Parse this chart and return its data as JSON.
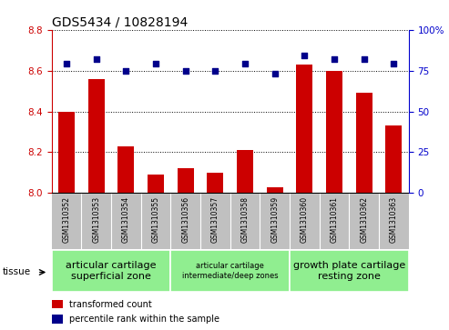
{
  "title": "GDS5434 / 10828194",
  "samples": [
    "GSM1310352",
    "GSM1310353",
    "GSM1310354",
    "GSM1310355",
    "GSM1310356",
    "GSM1310357",
    "GSM1310358",
    "GSM1310359",
    "GSM1310360",
    "GSM1310361",
    "GSM1310362",
    "GSM1310363"
  ],
  "red_values": [
    8.4,
    8.56,
    8.23,
    8.09,
    8.12,
    8.1,
    8.21,
    8.03,
    8.63,
    8.6,
    8.49,
    8.33
  ],
  "blue_values": [
    79,
    82,
    75,
    79,
    75,
    75,
    79,
    73,
    84,
    82,
    82,
    79
  ],
  "ylim_left": [
    8.0,
    8.8
  ],
  "ylim_right": [
    0,
    100
  ],
  "yticks_left": [
    8.0,
    8.2,
    8.4,
    8.6,
    8.8
  ],
  "yticks_right": [
    0,
    25,
    50,
    75,
    100
  ],
  "tissue_groups": [
    {
      "label": "articular cartilage\nsuperficial zone",
      "start": 0,
      "end": 4,
      "color": "#90EE90",
      "fontsize": 8
    },
    {
      "label": "articular cartilage\nintermediate/deep zones",
      "start": 4,
      "end": 8,
      "color": "#90EE90",
      "fontsize": 6
    },
    {
      "label": "growth plate cartilage\nresting zone",
      "start": 8,
      "end": 12,
      "color": "#90EE90",
      "fontsize": 8
    }
  ],
  "tissue_label": "tissue",
  "legend_red": "transformed count",
  "legend_blue": "percentile rank within the sample",
  "bar_color": "#CC0000",
  "dot_color": "#00008B",
  "bar_width": 0.55,
  "bg_color": "#C0C0C0",
  "left_tick_color": "#CC0000",
  "right_tick_color": "#0000CC",
  "title_fontsize": 10
}
